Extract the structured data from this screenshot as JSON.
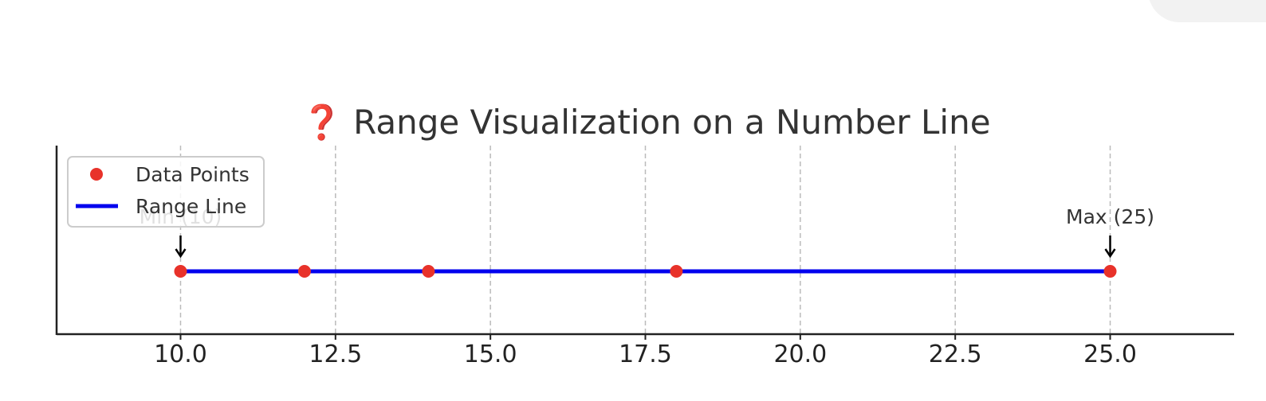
{
  "chart_data": {
    "type": "scatter",
    "title": "❓ Range Visualization on a Number Line",
    "xlabel": "",
    "ylabel": "",
    "xlim": [
      8,
      27
    ],
    "ylim": [
      -0.5,
      1.0
    ],
    "xticks": [
      10.0,
      12.5,
      15.0,
      17.5,
      20.0,
      22.5,
      25.0
    ],
    "xtick_labels": [
      "10.0",
      "12.5",
      "15.0",
      "17.5",
      "20.0",
      "22.5",
      "25.0"
    ],
    "grid": "x-dashed",
    "legend_position": "top-left",
    "series": [
      {
        "name": "Data Points",
        "kind": "scatter",
        "color": "#e8322a",
        "points": [
          {
            "x": 10,
            "y": 0
          },
          {
            "x": 12,
            "y": 0
          },
          {
            "x": 14,
            "y": 0
          },
          {
            "x": 18,
            "y": 0
          },
          {
            "x": 25,
            "y": 0
          }
        ]
      },
      {
        "name": "Range Line",
        "kind": "line",
        "color": "#0000ee",
        "points": [
          {
            "x": 10,
            "y": 0
          },
          {
            "x": 25,
            "y": 0
          }
        ]
      }
    ],
    "annotations": [
      {
        "text": "Min (10)",
        "x": 10,
        "y": 0
      },
      {
        "text": "Max (25)",
        "x": 25,
        "y": 0
      }
    ]
  }
}
